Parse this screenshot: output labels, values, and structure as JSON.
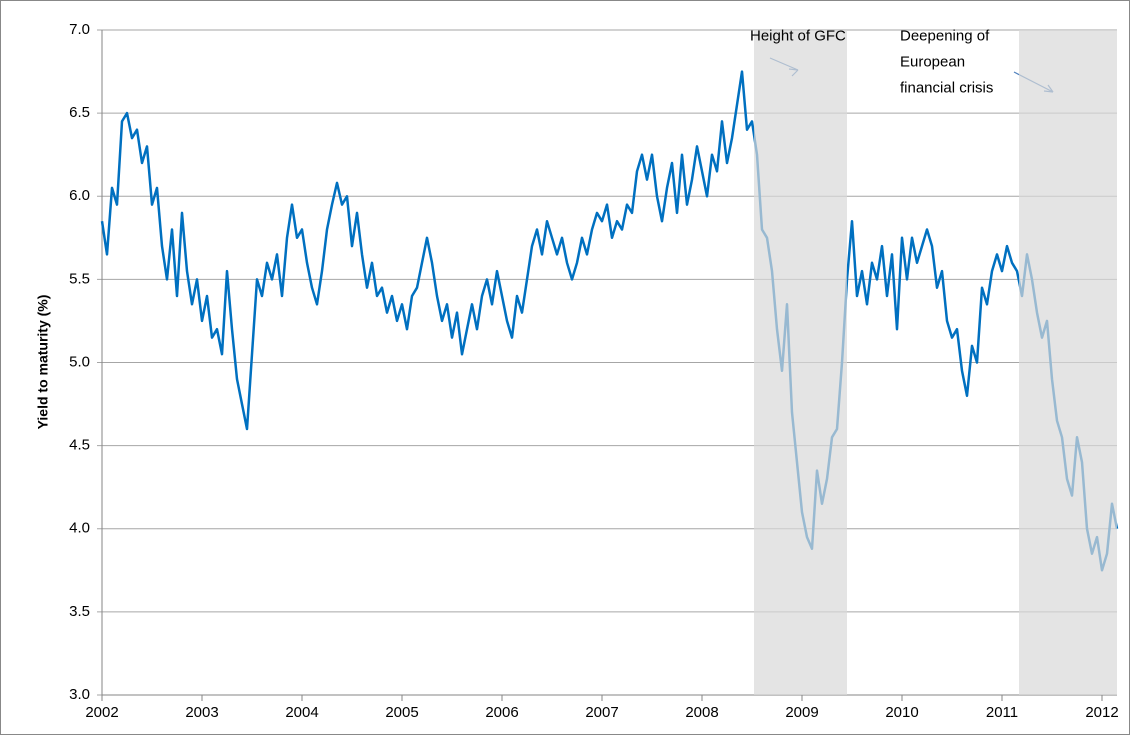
{
  "chart_data": {
    "type": "line",
    "y_label": "Yield to maturity (%)",
    "annotations": [
      {
        "lines": [
          "Height of GFC"
        ],
        "x": 2008.48,
        "y": 6.96
      },
      {
        "lines": [
          "Deepening of",
          "European",
          "financial crisis"
        ],
        "x": 2009.98,
        "y": 6.96
      }
    ],
    "shaded_regions": [
      [
        2008.52,
        2009.45
      ],
      [
        2011.17,
        2012.15
      ]
    ],
    "shade_color": "#d9d9d9",
    "grid": true,
    "xlim": [
      2002,
      2012.15
    ],
    "xticks": [
      2002,
      2003,
      2004,
      2005,
      2006,
      2007,
      2008,
      2009,
      2010,
      2011,
      2012
    ],
    "ylim": [
      3,
      7
    ],
    "yticks": [
      {
        "value": 3,
        "label": "3.0"
      },
      3.5,
      {
        "value": 4,
        "label": "4.0"
      },
      4.5,
      {
        "value": 5,
        "label": "5.0"
      },
      5.5,
      {
        "value": 6,
        "label": "6.0"
      },
      6.5,
      {
        "value": 7,
        "label": "7.0"
      }
    ],
    "x": [
      2002.0,
      2002.05,
      2002.1,
      2002.15,
      2002.2,
      2002.25,
      2002.3,
      2002.35,
      2002.4,
      2002.45,
      2002.5,
      2002.55,
      2002.6,
      2002.65,
      2002.7,
      2002.75,
      2002.8,
      2002.85,
      2002.9,
      2002.95,
      2003.0,
      2003.05,
      2003.1,
      2003.15,
      2003.2,
      2003.25,
      2003.3,
      2003.35,
      2003.4,
      2003.45,
      2003.5,
      2003.55,
      2003.6,
      2003.65,
      2003.7,
      2003.75,
      2003.8,
      2003.85,
      2003.9,
      2003.95,
      2004.0,
      2004.05,
      2004.1,
      2004.15,
      2004.2,
      2004.25,
      2004.3,
      2004.35,
      2004.4,
      2004.45,
      2004.5,
      2004.55,
      2004.6,
      2004.65,
      2004.7,
      2004.75,
      2004.8,
      2004.85,
      2004.9,
      2004.95,
      2005.0,
      2005.05,
      2005.1,
      2005.15,
      2005.2,
      2005.25,
      2005.3,
      2005.35,
      2005.4,
      2005.45,
      2005.5,
      2005.55,
      2005.6,
      2005.65,
      2005.7,
      2005.75,
      2005.8,
      2005.85,
      2005.9,
      2005.95,
      2006.0,
      2006.05,
      2006.1,
      2006.15,
      2006.2,
      2006.25,
      2006.3,
      2006.35,
      2006.4,
      2006.45,
      2006.5,
      2006.55,
      2006.6,
      2006.65,
      2006.7,
      2006.75,
      2006.8,
      2006.85,
      2006.9,
      2006.95,
      2007.0,
      2007.05,
      2007.1,
      2007.15,
      2007.2,
      2007.25,
      2007.3,
      2007.35,
      2007.4,
      2007.45,
      2007.5,
      2007.55,
      2007.6,
      2007.65,
      2007.7,
      2007.75,
      2007.8,
      2007.85,
      2007.9,
      2007.95,
      2008.0,
      2008.05,
      2008.1,
      2008.15,
      2008.2,
      2008.25,
      2008.3,
      2008.35,
      2008.4,
      2008.45,
      2008.5,
      2008.55,
      2008.6,
      2008.65,
      2008.7,
      2008.75,
      2008.8,
      2008.85,
      2008.9,
      2008.95,
      2009.0,
      2009.05,
      2009.1,
      2009.15,
      2009.2,
      2009.25,
      2009.3,
      2009.35,
      2009.4,
      2009.45,
      2009.5,
      2009.55,
      2009.6,
      2009.65,
      2009.7,
      2009.75,
      2009.8,
      2009.85,
      2009.9,
      2009.95,
      2010.0,
      2010.05,
      2010.1,
      2010.15,
      2010.2,
      2010.25,
      2010.3,
      2010.35,
      2010.4,
      2010.45,
      2010.5,
      2010.55,
      2010.6,
      2010.65,
      2010.7,
      2010.75,
      2010.8,
      2010.85,
      2010.9,
      2010.95,
      2011.0,
      2011.05,
      2011.1,
      2011.15,
      2011.2,
      2011.25,
      2011.3,
      2011.35,
      2011.4,
      2011.45,
      2011.5,
      2011.55,
      2011.6,
      2011.65,
      2011.7,
      2011.75,
      2011.8,
      2011.85,
      2011.9,
      2011.95,
      2012.0,
      2012.05,
      2012.1,
      2012.15
    ],
    "series": [
      {
        "color": "#0070c0",
        "values": [
          5.85,
          5.65,
          6.05,
          5.95,
          6.45,
          6.5,
          6.35,
          6.4,
          6.2,
          6.3,
          5.95,
          6.05,
          5.7,
          5.5,
          5.8,
          5.4,
          5.9,
          5.55,
          5.35,
          5.5,
          5.25,
          5.4,
          5.15,
          5.2,
          5.05,
          5.55,
          5.2,
          4.9,
          4.75,
          4.6,
          5.05,
          5.5,
          5.4,
          5.6,
          5.5,
          5.65,
          5.4,
          5.75,
          5.95,
          5.75,
          5.8,
          5.6,
          5.45,
          5.35,
          5.55,
          5.8,
          5.95,
          6.08,
          5.95,
          6.0,
          5.7,
          5.9,
          5.65,
          5.45,
          5.6,
          5.4,
          5.45,
          5.3,
          5.4,
          5.25,
          5.35,
          5.2,
          5.4,
          5.45,
          5.6,
          5.75,
          5.6,
          5.4,
          5.25,
          5.35,
          5.15,
          5.3,
          5.05,
          5.2,
          5.35,
          5.2,
          5.4,
          5.5,
          5.35,
          5.55,
          5.4,
          5.25,
          5.15,
          5.4,
          5.3,
          5.5,
          5.7,
          5.8,
          5.65,
          5.85,
          5.75,
          5.65,
          5.75,
          5.6,
          5.5,
          5.6,
          5.75,
          5.65,
          5.8,
          5.9,
          5.85,
          5.95,
          5.75,
          5.85,
          5.8,
          5.95,
          5.9,
          6.15,
          6.25,
          6.1,
          6.25,
          6.0,
          5.85,
          6.05,
          6.2,
          5.9,
          6.25,
          5.95,
          6.1,
          6.3,
          6.15,
          6.0,
          6.25,
          6.15,
          6.45,
          6.2,
          6.35,
          6.55,
          6.75,
          6.4,
          6.45,
          6.25,
          5.8,
          5.75,
          5.55,
          5.2,
          4.95,
          5.35,
          4.7,
          4.4,
          4.1,
          3.95,
          3.88,
          4.35,
          4.15,
          4.3,
          4.55,
          4.6,
          5.0,
          5.5,
          5.85,
          5.4,
          5.55,
          5.35,
          5.6,
          5.5,
          5.7,
          5.4,
          5.65,
          5.2,
          5.75,
          5.5,
          5.75,
          5.6,
          5.7,
          5.8,
          5.7,
          5.45,
          5.55,
          5.25,
          5.15,
          5.2,
          4.95,
          4.8,
          5.1,
          5.0,
          5.45,
          5.35,
          5.55,
          5.65,
          5.55,
          5.7,
          5.6,
          5.55,
          5.4,
          5.65,
          5.5,
          5.3,
          5.15,
          5.25,
          4.9,
          4.65,
          4.55,
          4.3,
          4.2,
          4.55,
          4.4,
          4.0,
          3.85,
          3.95,
          3.75,
          3.85,
          4.15,
          4.0
        ]
      }
    ]
  }
}
